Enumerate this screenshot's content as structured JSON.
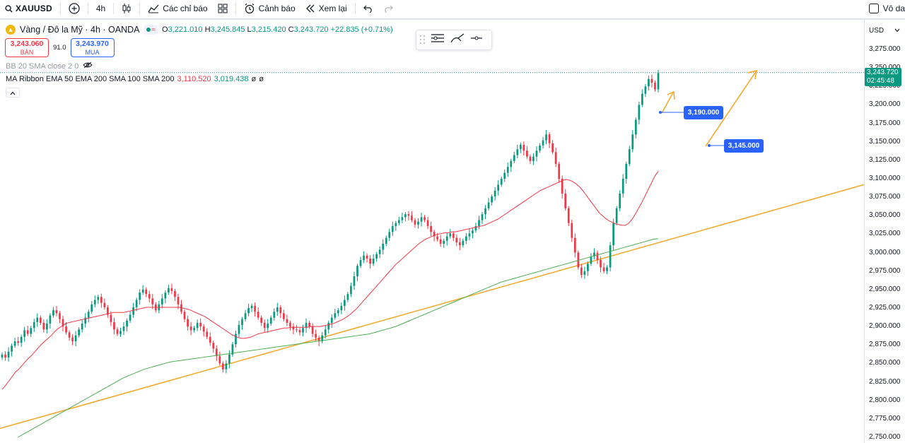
{
  "toolbar": {
    "symbol": "XAUUSD",
    "interval": "4h",
    "indicators_label": "Các chỉ báo",
    "alerts_label": "Cảnh báo",
    "replay_label": "Xem lại",
    "compare_label": "Vô da"
  },
  "legend": {
    "title": "Vàng / Đô la Mỹ · 4h · OANDA",
    "o_key": "O",
    "o_val": "3,221.010",
    "h_key": "H",
    "h_val": "3,245.845",
    "l_key": "L",
    "l_val": "3,215.420",
    "c_key": "C",
    "c_val": "3,243.720",
    "change": "+22.835 (+0.71%)"
  },
  "bidask": {
    "sell_price": "3,243.060",
    "sell_label": "BÁN",
    "spread": "91.0",
    "buy_price": "3,243.970",
    "buy_label": "MUA"
  },
  "indicators": {
    "bb": "BB 20 SMA close 2 0",
    "ma_ribbon": "MA Ribbon EMA 50 EMA 200 SMA 100 SMA 200",
    "ma_v1": "3,110.520",
    "ma_v2": "3,019.438",
    "ma_v3": "ø",
    "ma_v4": "ø"
  },
  "price_axis": {
    "currency": "USD",
    "ticks": [
      "3,275.000",
      "3,250.000",
      "3,225.000",
      "3,200.000",
      "3,175.000",
      "3,150.000",
      "3,125.000",
      "3,100.000",
      "3,075.000",
      "3,050.000",
      "3,025.000",
      "3,000.000",
      "2,975.000",
      "2,950.000",
      "2,925.000",
      "2,900.000",
      "2,875.000",
      "2,850.000",
      "2,825.000",
      "2,800.000",
      "2,775.000",
      "2,750.000"
    ],
    "last_price": "3,243.720",
    "countdown": "02:45:48"
  },
  "tags": {
    "target1": "3,190.000",
    "target2": "3,145.000"
  },
  "colors": {
    "up": "#089981",
    "down": "#f23645",
    "ema50": "#f23645",
    "ema200": "#4caf50",
    "trendline": "#f5a623",
    "tag": "#2962ff"
  },
  "chart_data": {
    "type": "candlestick",
    "ylim": [
      2745,
      3290
    ],
    "closes": [
      2862,
      2858,
      2866,
      2874,
      2880,
      2878,
      2886,
      2895,
      2890,
      2898,
      2906,
      2912,
      2905,
      2896,
      2904,
      2915,
      2922,
      2918,
      2910,
      2900,
      2892,
      2885,
      2880,
      2888,
      2896,
      2904,
      2912,
      2920,
      2930,
      2936,
      2940,
      2932,
      2926,
      2916,
      2906,
      2896,
      2890,
      2894,
      2900,
      2908,
      2916,
      2926,
      2936,
      2946,
      2950,
      2944,
      2938,
      2930,
      2922,
      2930,
      2938,
      2946,
      2952,
      2948,
      2940,
      2930,
      2920,
      2910,
      2900,
      2895,
      2898,
      2905,
      2900,
      2893,
      2886,
      2878,
      2870,
      2860,
      2850,
      2842,
      2850,
      2862,
      2876,
      2890,
      2902,
      2910,
      2918,
      2925,
      2928,
      2920,
      2912,
      2905,
      2898,
      2904,
      2912,
      2920,
      2926,
      2918,
      2910,
      2905,
      2900,
      2896,
      2895,
      2892,
      2898,
      2905,
      2900,
      2890,
      2885,
      2880,
      2888,
      2896,
      2905,
      2912,
      2918,
      2922,
      2928,
      2936,
      2944,
      2955,
      2968,
      2982,
      2990,
      2996,
      2992,
      2985,
      2992,
      2998,
      3004,
      3012,
      3020,
      3028,
      3036,
      3040,
      3044,
      3048,
      3052,
      3050,
      3044,
      3038,
      3042,
      3048,
      3044,
      3036,
      3028,
      3022,
      3018,
      3012,
      3016,
      3022,
      3026,
      3020,
      3014,
      3010,
      3016,
      3022,
      3026,
      3030,
      3036,
      3044,
      3052,
      3060,
      3068,
      3076,
      3084,
      3092,
      3100,
      3108,
      3116,
      3124,
      3132,
      3140,
      3146,
      3138,
      3130,
      3124,
      3130,
      3138,
      3145,
      3152,
      3160,
      3148,
      3136,
      3120,
      3100,
      3080,
      3060,
      3040,
      3020,
      3000,
      2980,
      2970,
      2975,
      2985,
      2995,
      3000,
      2990,
      2980,
      2975,
      2980,
      3010,
      3040,
      3060,
      3080,
      3100,
      3120,
      3140,
      3160,
      3180,
      3200,
      3215,
      3225,
      3235,
      3230,
      3221,
      3243
    ],
    "ema50": [
      2815,
      2820,
      2826,
      2832,
      2838,
      2842,
      2847,
      2852,
      2857,
      2861,
      2866,
      2871,
      2876,
      2880,
      2884,
      2888,
      2893,
      2897,
      2900,
      2903,
      2905,
      2906,
      2907,
      2908,
      2909,
      2910,
      2911,
      2912,
      2913,
      2914,
      2915,
      2916,
      2917,
      2918,
      2919,
      2919,
      2919,
      2919,
      2920,
      2921,
      2922,
      2923,
      2924,
      2925,
      2926,
      2926,
      2926,
      2926,
      2926,
      2926,
      2926,
      2926,
      2926,
      2926,
      2926,
      2925,
      2924,
      2923,
      2921,
      2919,
      2917,
      2915,
      2913,
      2910,
      2907,
      2904,
      2901,
      2898,
      2895,
      2892,
      2889,
      2887,
      2885,
      2884,
      2884,
      2885,
      2886,
      2888,
      2890,
      2891,
      2892,
      2893,
      2894,
      2895,
      2896,
      2897,
      2898,
      2898,
      2899,
      2899,
      2899,
      2899,
      2899,
      2899,
      2900,
      2900,
      2900,
      2900,
      2901,
      2902,
      2903,
      2904,
      2906,
      2908,
      2910,
      2913,
      2916,
      2920,
      2924,
      2929,
      2934,
      2939,
      2944,
      2949,
      2954,
      2959,
      2964,
      2969,
      2974,
      2979,
      2984,
      2988,
      2992,
      2996,
      3000,
      3004,
      3008,
      3012,
      3015,
      3018,
      3020,
      3022,
      3024,
      3025,
      3026,
      3027,
      3027,
      3028,
      3028,
      3029,
      3030,
      3031,
      3032,
      3033,
      3034,
      3035,
      3036,
      3037,
      3039,
      3041,
      3043,
      3045,
      3048,
      3051,
      3054,
      3057,
      3060,
      3063,
      3066,
      3069,
      3072,
      3075,
      3078,
      3081,
      3084,
      3086,
      3088,
      3090,
      3092,
      3094,
      3096,
      3098,
      3099,
      3098,
      3096,
      3093,
      3089,
      3084,
      3078,
      3072,
      3066,
      3060,
      3054,
      3050,
      3046,
      3043,
      3041,
      3039,
      3038,
      3037,
      3037,
      3040,
      3045,
      3052,
      3060,
      3068,
      3077,
      3086,
      3095,
      3104,
      3110
    ],
    "ema200": [
      2750,
      2754,
      2758,
      2762,
      2766,
      2770,
      2774,
      2778,
      2782,
      2786,
      2790,
      2794,
      2798,
      2802,
      2806,
      2810,
      2814,
      2818,
      2822,
      2826,
      2830,
      2833,
      2836,
      2839,
      2842,
      2844,
      2846,
      2848,
      2850,
      2852,
      2853,
      2854,
      2855,
      2856,
      2857,
      2858,
      2859,
      2860,
      2861,
      2862,
      2863,
      2864,
      2865,
      2866,
      2867,
      2868,
      2869,
      2870,
      2871,
      2872,
      2873,
      2874,
      2875,
      2876,
      2877,
      2878,
      2879,
      2880,
      2881,
      2882,
      2883,
      2884,
      2885,
      2886,
      2887,
      2888,
      2889,
      2890,
      2892,
      2894,
      2896,
      2898,
      2900,
      2903,
      2906,
      2909,
      2912,
      2915,
      2918,
      2921,
      2924,
      2927,
      2930,
      2933,
      2936,
      2939,
      2942,
      2945,
      2948,
      2951,
      2954,
      2957,
      2960,
      2962,
      2964,
      2966,
      2968,
      2970,
      2972,
      2974,
      2976,
      2978,
      2980,
      2982,
      2984,
      2986,
      2988,
      2990,
      2992,
      2994,
      2996,
      2998,
      3000,
      3002,
      3004,
      3006,
      3008,
      3010,
      3012,
      3014,
      3016,
      3018,
      3019
    ]
  }
}
